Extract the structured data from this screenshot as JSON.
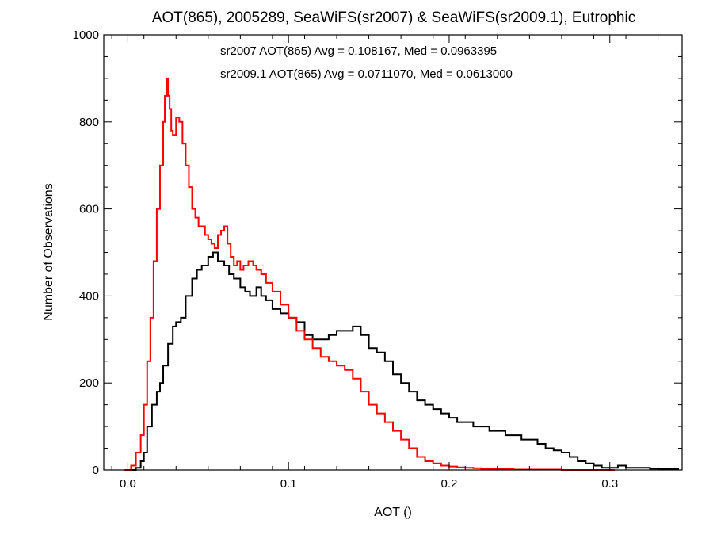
{
  "chart_data": {
    "type": "line",
    "title": "AOT(865), 2005289, SeaWiFS(sr2007) & SeaWiFS(sr2009.1), Eutrophic",
    "xlabel": "AOT ()",
    "ylabel": "Number of Observations",
    "xlim": [
      -0.015,
      0.345
    ],
    "ylim": [
      0,
      1000
    ],
    "x_ticks": [
      0.0,
      0.1,
      0.2,
      0.3
    ],
    "x_tick_labels": [
      "0.0",
      "0.1",
      "0.2",
      "0.3"
    ],
    "y_ticks": [
      0,
      200,
      400,
      600,
      800,
      1000
    ],
    "y_tick_labels": [
      "0",
      "200",
      "400",
      "600",
      "800",
      "1000"
    ],
    "grid": false,
    "annotations": [
      {
        "text": "sr2007 AOT(865) Avg = 0.108167, Med = 0.0963395",
        "color": "#000000"
      },
      {
        "text": "sr2009.1 AOT(865) Avg = 0.0711070, Med = 0.0613000",
        "color": "#ff0000"
      }
    ],
    "series": [
      {
        "color": "#000000",
        "x": [
          0.0,
          0.005,
          0.008,
          0.01,
          0.012,
          0.015,
          0.018,
          0.02,
          0.022,
          0.025,
          0.028,
          0.03,
          0.033,
          0.036,
          0.04,
          0.043,
          0.046,
          0.05,
          0.053,
          0.056,
          0.06,
          0.063,
          0.066,
          0.07,
          0.073,
          0.076,
          0.08,
          0.083,
          0.086,
          0.09,
          0.095,
          0.1,
          0.105,
          0.11,
          0.115,
          0.12,
          0.125,
          0.13,
          0.135,
          0.14,
          0.145,
          0.15,
          0.155,
          0.16,
          0.165,
          0.17,
          0.175,
          0.18,
          0.185,
          0.19,
          0.195,
          0.2,
          0.205,
          0.21,
          0.215,
          0.22,
          0.225,
          0.23,
          0.235,
          0.24,
          0.245,
          0.25,
          0.255,
          0.26,
          0.265,
          0.27,
          0.275,
          0.28,
          0.285,
          0.29,
          0.295,
          0.3,
          0.305,
          0.31,
          0.315,
          0.32,
          0.325,
          0.33,
          0.335,
          0.34
        ],
        "y": [
          0,
          5,
          20,
          40,
          100,
          150,
          180,
          200,
          240,
          290,
          330,
          340,
          350,
          400,
          440,
          460,
          470,
          490,
          500,
          480,
          470,
          450,
          440,
          420,
          410,
          400,
          420,
          400,
          390,
          370,
          360,
          350,
          340,
          310,
          300,
          300,
          310,
          320,
          320,
          330,
          310,
          280,
          270,
          250,
          220,
          200,
          180,
          160,
          150,
          140,
          130,
          120,
          110,
          110,
          100,
          100,
          90,
          90,
          80,
          80,
          70,
          70,
          60,
          50,
          45,
          40,
          30,
          20,
          15,
          10,
          5,
          5,
          10,
          5,
          5,
          5,
          3,
          2,
          2,
          2
        ]
      },
      {
        "color": "#ff0000",
        "x": [
          -0.002,
          0.002,
          0.005,
          0.008,
          0.01,
          0.012,
          0.014,
          0.016,
          0.018,
          0.02,
          0.022,
          0.023,
          0.024,
          0.025,
          0.026,
          0.027,
          0.028,
          0.03,
          0.032,
          0.034,
          0.036,
          0.038,
          0.04,
          0.042,
          0.044,
          0.046,
          0.048,
          0.05,
          0.052,
          0.054,
          0.056,
          0.058,
          0.06,
          0.062,
          0.064,
          0.066,
          0.068,
          0.07,
          0.072,
          0.075,
          0.078,
          0.08,
          0.083,
          0.086,
          0.09,
          0.095,
          0.1,
          0.105,
          0.11,
          0.115,
          0.12,
          0.125,
          0.13,
          0.135,
          0.14,
          0.145,
          0.15,
          0.155,
          0.16,
          0.165,
          0.17,
          0.175,
          0.18,
          0.185,
          0.19,
          0.195,
          0.2,
          0.205,
          0.21,
          0.215,
          0.22,
          0.225,
          0.23,
          0.24,
          0.25,
          0.26,
          0.27,
          0.28,
          0.29,
          0.3
        ],
        "y": [
          0,
          10,
          40,
          80,
          150,
          250,
          350,
          480,
          600,
          700,
          800,
          860,
          900,
          860,
          830,
          780,
          770,
          810,
          800,
          750,
          700,
          650,
          600,
          580,
          560,
          560,
          540,
          530,
          520,
          510,
          540,
          550,
          560,
          520,
          490,
          470,
          480,
          460,
          470,
          480,
          470,
          460,
          450,
          430,
          410,
          380,
          350,
          320,
          300,
          280,
          260,
          250,
          240,
          230,
          210,
          180,
          150,
          130,
          110,
          90,
          70,
          50,
          30,
          20,
          15,
          10,
          8,
          6,
          5,
          4,
          3,
          2,
          2,
          1,
          1,
          1,
          0,
          0,
          0,
          0
        ]
      }
    ]
  }
}
